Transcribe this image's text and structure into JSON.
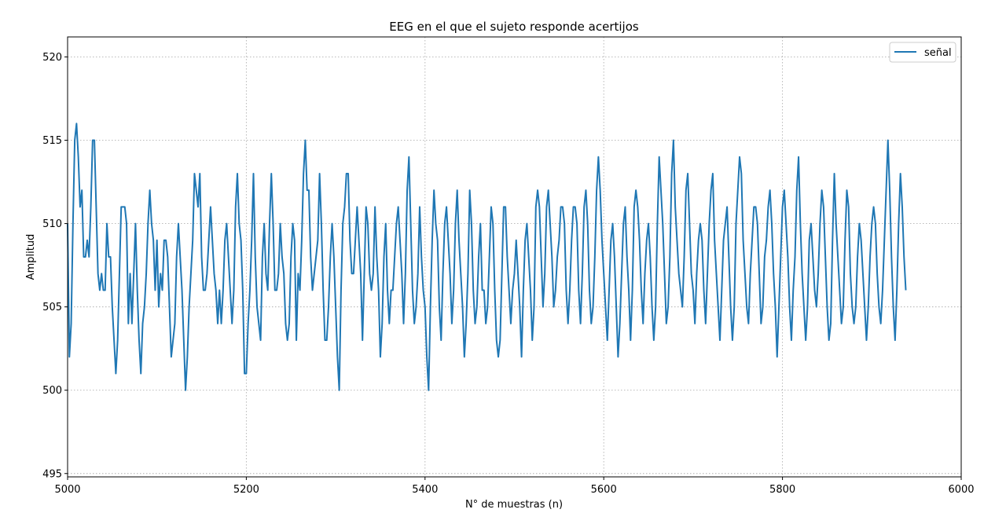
{
  "chart_data": {
    "type": "line",
    "title": "EEG en el que el sujeto responde acertijos",
    "xlabel": "N° de muestras (n)",
    "ylabel": "Amplitud",
    "xlim": [
      5000,
      6000
    ],
    "ylim": [
      494.8,
      521.2
    ],
    "xticks": [
      5000,
      5200,
      5400,
      5600,
      5800,
      6000
    ],
    "yticks": [
      495,
      500,
      505,
      510,
      515,
      520
    ],
    "grid": true,
    "legend_position": "upper-right",
    "series": [
      {
        "name": "señal",
        "color": "#1f77b4",
        "x_start": 5000,
        "x_step": 2,
        "values": [
          510,
          502,
          504,
          510,
          515,
          516,
          514,
          511,
          512,
          508,
          508,
          509,
          508,
          511,
          515,
          515,
          511,
          507,
          506,
          507,
          506,
          506,
          510,
          508,
          508,
          505,
          503,
          501,
          503,
          507,
          511,
          511,
          511,
          510,
          504,
          507,
          504,
          507,
          510,
          506,
          503,
          501,
          504,
          505,
          507,
          510,
          512,
          510,
          509,
          506,
          509,
          505,
          507,
          506,
          509,
          509,
          508,
          505,
          502,
          503,
          504,
          508,
          510,
          508,
          506,
          503,
          500,
          502,
          505,
          507,
          509,
          513,
          512,
          511,
          513,
          508,
          506,
          506,
          507,
          509,
          511,
          509,
          507,
          506,
          504,
          506,
          504,
          506,
          509,
          510,
          508,
          506,
          504,
          506,
          511,
          513,
          510,
          509,
          506,
          501,
          501,
          504,
          506,
          509,
          513,
          508,
          505,
          504,
          503,
          508,
          510,
          507,
          506,
          510,
          513,
          510,
          506,
          506,
          507,
          510,
          508,
          507,
          504,
          503,
          504,
          508,
          510,
          509,
          503,
          507,
          506,
          509,
          513,
          515,
          512,
          512,
          508,
          506,
          507,
          508,
          509,
          513,
          510,
          506,
          503,
          503,
          505,
          508,
          510,
          508,
          505,
          502,
          500,
          506,
          510,
          511,
          513,
          513,
          509,
          507,
          507,
          509,
          511,
          509,
          507,
          503,
          507,
          511,
          510,
          507,
          506,
          507,
          511,
          508,
          506,
          502,
          504,
          508,
          510,
          506,
          504,
          506,
          506,
          508,
          510,
          511,
          509,
          507,
          504,
          507,
          512,
          514,
          510,
          506,
          504,
          505,
          507,
          511,
          508,
          506,
          505,
          502,
          500,
          505,
          509,
          512,
          510,
          509,
          505,
          503,
          507,
          510,
          511,
          509,
          507,
          504,
          506,
          510,
          512,
          509,
          507,
          505,
          502,
          504,
          507,
          512,
          510,
          506,
          504,
          505,
          508,
          510,
          506,
          506,
          504,
          505,
          508,
          511,
          510,
          506,
          503,
          502,
          503,
          507,
          511,
          511,
          508,
          506,
          504,
          506,
          507,
          509,
          507,
          505,
          502,
          506,
          509,
          510,
          508,
          506,
          503,
          505,
          511,
          512,
          511,
          508,
          505,
          507,
          511,
          512,
          510,
          508,
          505,
          506,
          508,
          509,
          511,
          511,
          510,
          506,
          504,
          506,
          509,
          511,
          511,
          510,
          506,
          504,
          507,
          511,
          512,
          510,
          506,
          504,
          505,
          508,
          512,
          514,
          512,
          509,
          507,
          505,
          503,
          506,
          509,
          510,
          508,
          505,
          502,
          504,
          507,
          510,
          511,
          508,
          506,
          503,
          506,
          511,
          512,
          511,
          509,
          506,
          504,
          507,
          509,
          510,
          508,
          505,
          503,
          505,
          510,
          514,
          512,
          510,
          507,
          504,
          505,
          508,
          513,
          515,
          511,
          509,
          507,
          506,
          505,
          508,
          512,
          513,
          510,
          507,
          506,
          504,
          507,
          509,
          510,
          509,
          506,
          504,
          507,
          510,
          512,
          513,
          509,
          507,
          505,
          503,
          506,
          509,
          510,
          511,
          508,
          505,
          503,
          505,
          510,
          512,
          514,
          513,
          509,
          507,
          505,
          504,
          507,
          509,
          511,
          511,
          510,
          507,
          504,
          505,
          508,
          509,
          511,
          512,
          510,
          507,
          505,
          502,
          505,
          508,
          511,
          512,
          510,
          508,
          505,
          503,
          506,
          508,
          512,
          514,
          510,
          507,
          505,
          503,
          505,
          509,
          510,
          508,
          506,
          505,
          507,
          510,
          512,
          511,
          508,
          505,
          503,
          504,
          509,
          513,
          510,
          508,
          506,
          504,
          505,
          509,
          512,
          511,
          507,
          505,
          504,
          505,
          508,
          510,
          509,
          507,
          505,
          503,
          505,
          508,
          510,
          511,
          510,
          507,
          505,
          504,
          506,
          509,
          512,
          515,
          512,
          508,
          505,
          503,
          506,
          510,
          513,
          511,
          508,
          506
        ]
      }
    ]
  }
}
